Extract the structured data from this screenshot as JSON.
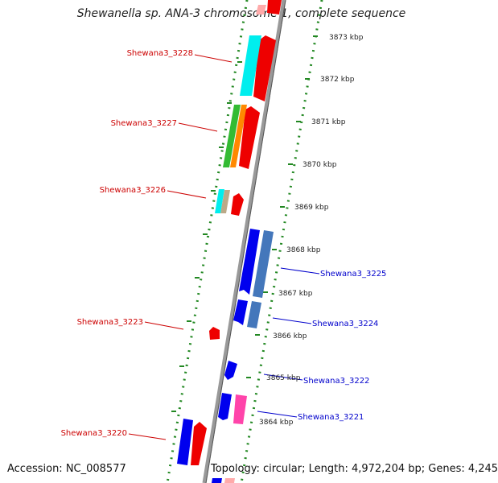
{
  "title": "Shewanella sp. ANA-3 chromosome 1, complete sequence",
  "footer": {
    "accession": "Accession: NC_008577",
    "summary": "Topology: circular; Length: 4,972,204 bp; Genes: 4,245"
  },
  "ticks": [
    {
      "label": "3873 kbp",
      "kbp": 3873
    },
    {
      "label": "3872 kbp",
      "kbp": 3872
    },
    {
      "label": "3871 kbp",
      "kbp": 3871
    },
    {
      "label": "3870 kbp",
      "kbp": 3870
    },
    {
      "label": "3869 kbp",
      "kbp": 3869
    },
    {
      "label": "3868 kbp",
      "kbp": 3868
    },
    {
      "label": "3867 kbp",
      "kbp": 3867
    },
    {
      "label": "3866 kbp",
      "kbp": 3866
    },
    {
      "label": "3865 kbp",
      "kbp": 3865
    },
    {
      "label": "3864 kbp",
      "kbp": 3864
    }
  ],
  "gene_labels": [
    {
      "name": "Shewana3_3228",
      "strand": "forward"
    },
    {
      "name": "Shewana3_3227",
      "strand": "forward"
    },
    {
      "name": "Shewana3_3226",
      "strand": "forward"
    },
    {
      "name": "Shewana3_3223",
      "strand": "forward"
    },
    {
      "name": "Shewana3_3220",
      "strand": "forward"
    },
    {
      "name": "Shewana3_3225",
      "strand": "reverse"
    },
    {
      "name": "Shewana3_3224",
      "strand": "reverse"
    },
    {
      "name": "Shewana3_3222",
      "strand": "reverse"
    },
    {
      "name": "Shewana3_3221",
      "strand": "reverse"
    }
  ],
  "colors": {
    "forward_label": "#cc0000",
    "reverse_label": "#0000cc",
    "forward_gene": "#ee0000",
    "reverse_gene": "#0000ee",
    "backbone": "#888888",
    "tick_ring": "#228822"
  }
}
